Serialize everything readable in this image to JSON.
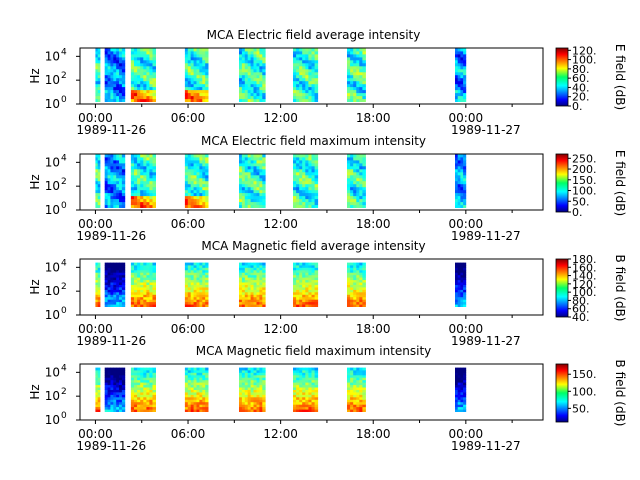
{
  "chart_data": [
    {
      "type": "heatmap",
      "title": "MCA  Electric field average intensity",
      "ylabel": "Hz",
      "y_ticks": [
        "10^4",
        "10^2",
        "10^0"
      ],
      "x_ticks": [
        "00:00",
        "06:00",
        "12:00",
        "18:00",
        "00:00"
      ],
      "x_dates": [
        "1989-11-26",
        "1989-11-27"
      ],
      "colorbar_label": "E field (dB)",
      "colorbar_ticks": [
        "120.",
        "100.",
        "80.",
        "60.",
        "40.",
        "20.",
        "0."
      ],
      "colorbar_range": [
        0,
        125
      ],
      "intensity_level": "low",
      "ylim_log10": [
        0,
        4.7
      ],
      "x_range_hours": [
        -1,
        29
      ],
      "bursts": [
        {
          "start_hour": 0.0,
          "end_hour": 0.3
        },
        {
          "start_hour": 0.6,
          "end_hour": 1.9
        },
        {
          "start_hour": 2.3,
          "end_hour": 3.9
        },
        {
          "start_hour": 5.8,
          "end_hour": 7.3
        },
        {
          "start_hour": 9.3,
          "end_hour": 11.0
        },
        {
          "start_hour": 12.8,
          "end_hour": 14.4
        },
        {
          "start_hour": 16.3,
          "end_hour": 17.5
        },
        {
          "start_hour": 23.3,
          "end_hour": 24.0
        }
      ]
    },
    {
      "type": "heatmap",
      "title": "MCA  Electric field maximum intensity",
      "ylabel": "Hz",
      "y_ticks": [
        "10^4",
        "10^2",
        "10^0"
      ],
      "x_ticks": [
        "00:00",
        "06:00",
        "12:00",
        "18:00",
        "00:00"
      ],
      "x_dates": [
        "1989-11-26",
        "1989-11-27"
      ],
      "colorbar_label": "E field (dB)",
      "colorbar_ticks": [
        "250.",
        "200.",
        "150.",
        "100.",
        "50.",
        "0."
      ],
      "colorbar_range": [
        0,
        270
      ],
      "intensity_level": "low",
      "ylim_log10": [
        0,
        4.7
      ],
      "x_range_hours": [
        -1,
        29
      ],
      "bursts": [
        {
          "start_hour": 0.0,
          "end_hour": 0.3
        },
        {
          "start_hour": 0.6,
          "end_hour": 1.9
        },
        {
          "start_hour": 2.3,
          "end_hour": 3.9
        },
        {
          "start_hour": 5.8,
          "end_hour": 7.3
        },
        {
          "start_hour": 9.3,
          "end_hour": 11.0
        },
        {
          "start_hour": 12.8,
          "end_hour": 14.4
        },
        {
          "start_hour": 16.3,
          "end_hour": 17.5
        },
        {
          "start_hour": 23.3,
          "end_hour": 24.0
        }
      ]
    },
    {
      "type": "heatmap",
      "title": "MCA  Magnetic field average intensity",
      "ylabel": "Hz",
      "y_ticks": [
        "10^4",
        "10^2",
        "10^0"
      ],
      "x_ticks": [
        "00:00",
        "06:00",
        "12:00",
        "18:00",
        "00:00"
      ],
      "x_dates": [
        "1989-11-26",
        "1989-11-27"
      ],
      "colorbar_label": "B field (dB)",
      "colorbar_ticks": [
        "180.",
        "160.",
        "140.",
        "120.",
        "100.",
        "80.",
        "60.",
        "40."
      ],
      "colorbar_range": [
        40,
        180
      ],
      "intensity_level": "high",
      "ylim_log10": [
        0,
        4.7
      ],
      "x_range_hours": [
        -1,
        29
      ],
      "bursts": [
        {
          "start_hour": 0.0,
          "end_hour": 0.3
        },
        {
          "start_hour": 0.6,
          "end_hour": 1.9
        },
        {
          "start_hour": 2.3,
          "end_hour": 3.9
        },
        {
          "start_hour": 5.8,
          "end_hour": 7.3
        },
        {
          "start_hour": 9.3,
          "end_hour": 11.0
        },
        {
          "start_hour": 12.8,
          "end_hour": 14.4
        },
        {
          "start_hour": 16.3,
          "end_hour": 17.5
        },
        {
          "start_hour": 23.3,
          "end_hour": 24.0
        }
      ]
    },
    {
      "type": "heatmap",
      "title": "MCA  Magnetic field maximum intensity",
      "ylabel": "Hz",
      "y_ticks": [
        "10^4",
        "10^2",
        "10^0"
      ],
      "x_ticks": [
        "00:00",
        "06:00",
        "12:00",
        "18:00",
        "00:00"
      ],
      "x_dates": [
        "1989-11-26",
        "1989-11-27"
      ],
      "colorbar_label": "B field (dB)",
      "colorbar_ticks": [
        "150.",
        "100.",
        "50."
      ],
      "colorbar_range": [
        10,
        180
      ],
      "intensity_level": "high",
      "ylim_log10": [
        0,
        4.7
      ],
      "x_range_hours": [
        -1,
        29
      ],
      "bursts": [
        {
          "start_hour": 0.0,
          "end_hour": 0.3
        },
        {
          "start_hour": 0.6,
          "end_hour": 1.9
        },
        {
          "start_hour": 2.3,
          "end_hour": 3.9
        },
        {
          "start_hour": 5.8,
          "end_hour": 7.3
        },
        {
          "start_hour": 9.3,
          "end_hour": 11.0
        },
        {
          "start_hour": 12.8,
          "end_hour": 14.4
        },
        {
          "start_hour": 16.3,
          "end_hour": 17.5
        },
        {
          "start_hour": 23.3,
          "end_hour": 24.0
        }
      ]
    }
  ]
}
